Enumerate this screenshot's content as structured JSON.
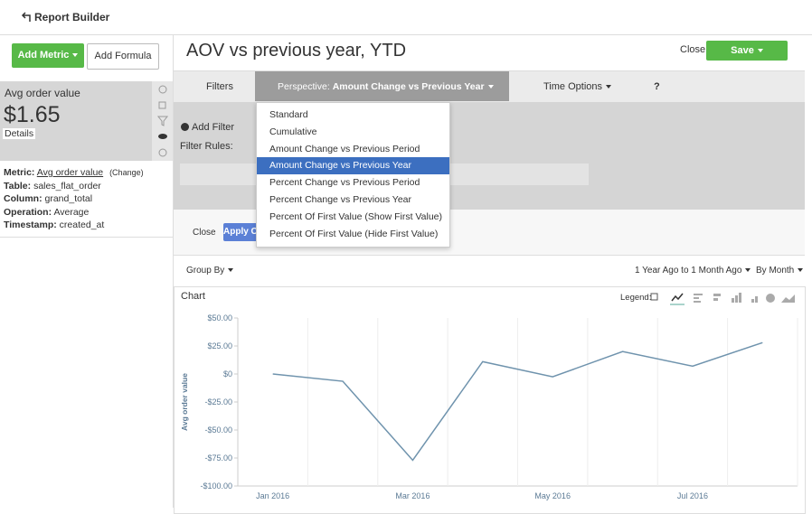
{
  "header": {
    "title": "Report Builder"
  },
  "sidebar": {
    "add_metric": "Add Metric",
    "add_formula": "Add Formula",
    "metric_card": {
      "name": "Avg order value",
      "value": "$1.65",
      "details": "Details"
    },
    "metric_info": [
      {
        "label": "Metric:",
        "value": "Avg order value",
        "action": "(Change)"
      },
      {
        "label": "Table:",
        "value": "sales_flat_order"
      },
      {
        "label": "Column:",
        "value": "grand_total"
      },
      {
        "label": "Operation:",
        "value": "Average"
      },
      {
        "label": "Timestamp:",
        "value": "created_at"
      }
    ]
  },
  "report": {
    "title": "AOV vs previous year, YTD",
    "close": "Close",
    "save": "Save",
    "tabs": {
      "filters": "Filters",
      "perspective_label": "Perspective:",
      "perspective_value": "Amount Change vs Previous Year",
      "time_options": "Time Options",
      "help": "?"
    },
    "filters": {
      "add_filter": "Add Filter",
      "filter_rules": "Filter Rules:",
      "close": "Close",
      "apply": "Apply Changes"
    },
    "perspective_menu": {
      "options": [
        "Standard",
        "Cumulative",
        "Amount Change vs Previous Period",
        "Amount Change vs Previous Year",
        "Percent Change vs Previous Period",
        "Percent Change vs Previous Year",
        "Percent Of First Value (Show First Value)",
        "Percent Of First Value (Hide First Value)"
      ],
      "selected": 3
    },
    "toolbar": {
      "group_by": "Group By",
      "date_range": "1 Year Ago to 1 Month Ago",
      "interval": "By Month"
    },
    "chart_panel": {
      "title": "Chart",
      "legend": "Legend:"
    }
  },
  "chart_data": {
    "type": "line",
    "y_label": "Avg order value",
    "categories": [
      "Jan 2016",
      null,
      "Mar 2016",
      null,
      "May 2016",
      null,
      "Jul 2016",
      null
    ],
    "values": [
      0,
      -6.5,
      -77,
      11,
      -2.5,
      20,
      7,
      28
    ],
    "color": "#6f93ad",
    "ylim": [
      -100,
      50
    ],
    "yticks": [
      {
        "value": 50,
        "label": "$50.00"
      },
      {
        "value": 25,
        "label": "$25.00"
      },
      {
        "value": 0,
        "label": "$0"
      },
      {
        "value": -25,
        "label": "-$25.00"
      },
      {
        "value": -50,
        "label": "-$50.00"
      },
      {
        "value": -75,
        "label": "-$75.00"
      },
      {
        "value": -100,
        "label": "-$100.00"
      }
    ],
    "grid": true
  }
}
